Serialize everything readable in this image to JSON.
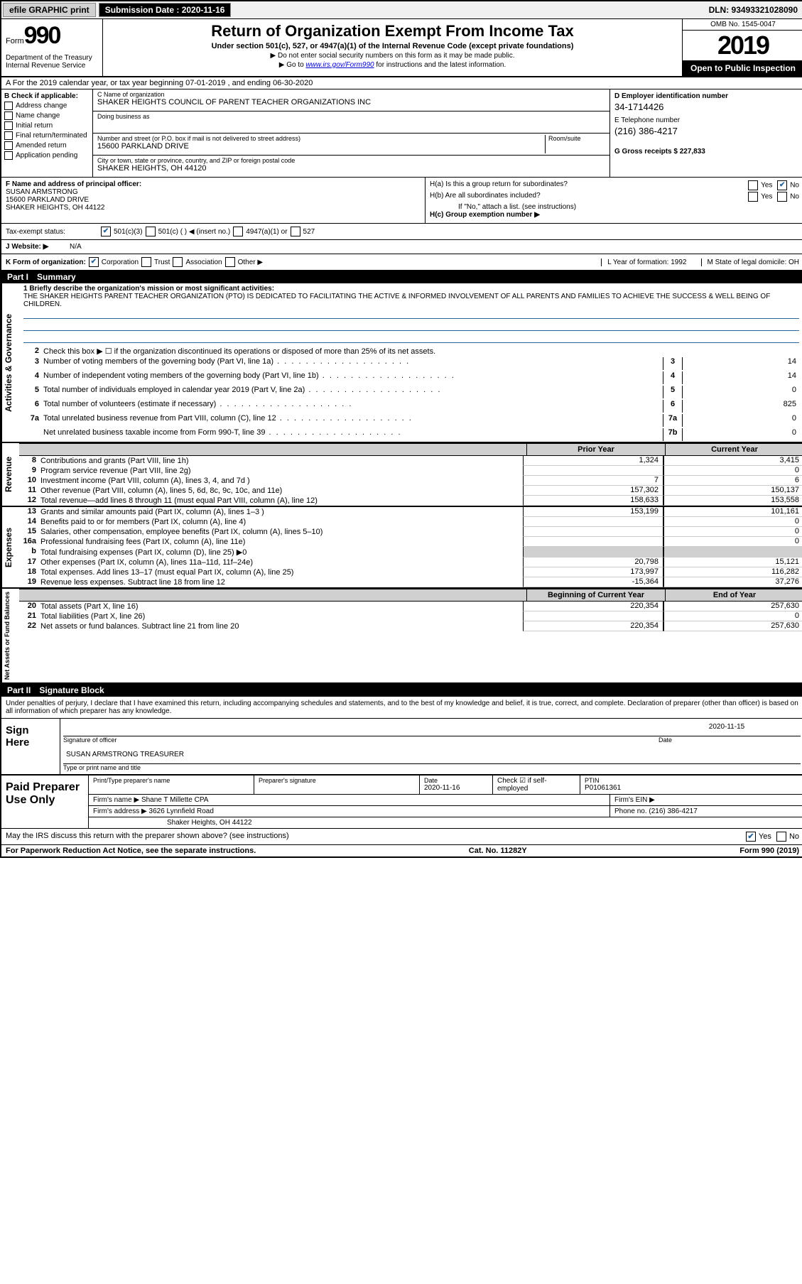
{
  "topbar": {
    "efile": "efile GRAPHIC print",
    "submission_label": "Submission Date : 2020-11-16",
    "dln": "DLN: 93493321028090"
  },
  "header": {
    "form_prefix": "Form",
    "form_number": "990",
    "dept": "Department of the Treasury\nInternal Revenue Service",
    "title": "Return of Organization Exempt From Income Tax",
    "subtitle": "Under section 501(c), 527, or 4947(a)(1) of the Internal Revenue Code (except private foundations)",
    "note1": "▶ Do not enter social security numbers on this form as it may be made public.",
    "note2_pre": "▶ Go to ",
    "note2_link": "www.irs.gov/Form990",
    "note2_post": " for instructions and the latest information.",
    "omb": "OMB No. 1545-0047",
    "year": "2019",
    "open": "Open to Public Inspection"
  },
  "lineA": "A For the 2019 calendar year, or tax year beginning 07-01-2019   , and ending 06-30-2020",
  "checkB": {
    "label": "B Check if applicable:",
    "items": [
      "Address change",
      "Name change",
      "Initial return",
      "Final return/terminated",
      "Amended return",
      "Application pending"
    ]
  },
  "orgC": {
    "name_lbl": "C Name of organization",
    "name": "SHAKER HEIGHTS COUNCIL OF PARENT TEACHER ORGANIZATIONS INC",
    "dba_lbl": "Doing business as",
    "dba": "",
    "addr_lbl": "Number and street (or P.O. box if mail is not delivered to street address)",
    "addr": "15600 PARKLAND DRIVE",
    "room_lbl": "Room/suite",
    "city_lbl": "City or town, state or province, country, and ZIP or foreign postal code",
    "city": "SHAKER HEIGHTS, OH  44120"
  },
  "colD": {
    "ein_lbl": "D Employer identification number",
    "ein": "34-1714426",
    "tel_lbl": "E Telephone number",
    "tel": "(216) 386-4217",
    "gross_lbl": "G Gross receipts $ 227,833"
  },
  "officerF": {
    "label": "F  Name and address of principal officer:",
    "name": "SUSAN ARMSTRONG",
    "addr1": "15600 PARKLAND DRIVE",
    "addr2": "SHAKER HEIGHTS, OH  44122"
  },
  "hbox": {
    "ha": "H(a)  Is this a group return for subordinates?",
    "ha_yes": "Yes",
    "ha_no": "No",
    "hb": "H(b)  Are all subordinates included?",
    "hb_note": "If \"No,\" attach a list. (see instructions)",
    "hc": "H(c)  Group exemption number ▶"
  },
  "status": {
    "label": "Tax-exempt status:",
    "a": "501(c)(3)",
    "b": "501(c) (  ) ◀ (insert no.)",
    "c": "4947(a)(1) or",
    "d": "527"
  },
  "websiteJ": {
    "label": "J  Website: ▶",
    "val": "N/A"
  },
  "korg": {
    "label": "K Form of organization:",
    "a": "Corporation",
    "b": "Trust",
    "c": "Association",
    "d": "Other ▶",
    "yof_lbl": "L Year of formation: 1992",
    "dom_lbl": "M State of legal domicile: OH"
  },
  "part1": {
    "pn": "Part I",
    "title": "Summary"
  },
  "mission": {
    "label": "1  Briefly describe the organization's mission or most significant activities:",
    "text": "THE SHAKER HEIGHTS PARENT TEACHER ORGANIZATION (PTO) IS DEDICATED TO FACILITATING THE ACTIVE & INFORMED INVOLVEMENT OF ALL PARENTS AND FAMILIES TO ACHIEVE THE SUCCESS & WELL BEING OF CHILDREN."
  },
  "gov_lines": [
    {
      "n": "2",
      "t": "Check this box ▶ ☐  if the organization discontinued its operations or disposed of more than 25% of its net assets."
    },
    {
      "n": "3",
      "t": "Number of voting members of the governing body (Part VI, line 1a)",
      "nc": "3",
      "v": "14"
    },
    {
      "n": "4",
      "t": "Number of independent voting members of the governing body (Part VI, line 1b)",
      "nc": "4",
      "v": "14"
    },
    {
      "n": "5",
      "t": "Total number of individuals employed in calendar year 2019 (Part V, line 2a)",
      "nc": "5",
      "v": "0"
    },
    {
      "n": "6",
      "t": "Total number of volunteers (estimate if necessary)",
      "nc": "6",
      "v": "825"
    },
    {
      "n": "7a",
      "t": "Total unrelated business revenue from Part VIII, column (C), line 12",
      "nc": "7a",
      "v": "0"
    },
    {
      "n": "",
      "t": "Net unrelated business taxable income from Form 990-T, line 39",
      "nc": "7b",
      "v": "0"
    }
  ],
  "col_hdr": {
    "prior": "Prior Year",
    "current": "Current Year"
  },
  "revenue": [
    {
      "n": "8",
      "t": "Contributions and grants (Part VIII, line 1h)",
      "p": "1,324",
      "c": "3,415"
    },
    {
      "n": "9",
      "t": "Program service revenue (Part VIII, line 2g)",
      "p": "",
      "c": "0"
    },
    {
      "n": "10",
      "t": "Investment income (Part VIII, column (A), lines 3, 4, and 7d )",
      "p": "7",
      "c": "6"
    },
    {
      "n": "11",
      "t": "Other revenue (Part VIII, column (A), lines 5, 6d, 8c, 9c, 10c, and 11e)",
      "p": "157,302",
      "c": "150,137"
    },
    {
      "n": "12",
      "t": "Total revenue—add lines 8 through 11 (must equal Part VIII, column (A), line 12)",
      "p": "158,633",
      "c": "153,558"
    }
  ],
  "expenses": [
    {
      "n": "13",
      "t": "Grants and similar amounts paid (Part IX, column (A), lines 1–3 )",
      "p": "153,199",
      "c": "101,161"
    },
    {
      "n": "14",
      "t": "Benefits paid to or for members (Part IX, column (A), line 4)",
      "p": "",
      "c": "0"
    },
    {
      "n": "15",
      "t": "Salaries, other compensation, employee benefits (Part IX, column (A), lines 5–10)",
      "p": "",
      "c": "0"
    },
    {
      "n": "16a",
      "t": "Professional fundraising fees (Part IX, column (A), line 11e)",
      "p": "",
      "c": "0"
    },
    {
      "n": "b",
      "t": "Total fundraising expenses (Part IX, column (D), line 25) ▶0",
      "p": "shade",
      "c": "shade"
    },
    {
      "n": "17",
      "t": "Other expenses (Part IX, column (A), lines 11a–11d, 11f–24e)",
      "p": "20,798",
      "c": "15,121"
    },
    {
      "n": "18",
      "t": "Total expenses. Add lines 13–17 (must equal Part IX, column (A), line 25)",
      "p": "173,997",
      "c": "116,282"
    },
    {
      "n": "19",
      "t": "Revenue less expenses. Subtract line 18 from line 12",
      "p": "-15,364",
      "c": "37,276"
    }
  ],
  "na_hdr": {
    "beg": "Beginning of Current Year",
    "end": "End of Year"
  },
  "netassets": [
    {
      "n": "20",
      "t": "Total assets (Part X, line 16)",
      "p": "220,354",
      "c": "257,630"
    },
    {
      "n": "21",
      "t": "Total liabilities (Part X, line 26)",
      "p": "",
      "c": "0"
    },
    {
      "n": "22",
      "t": "Net assets or fund balances. Subtract line 21 from line 20",
      "p": "220,354",
      "c": "257,630"
    }
  ],
  "part2": {
    "pn": "Part II",
    "title": "Signature Block"
  },
  "sig_decl": "Under penalties of perjury, I declare that I have examined this return, including accompanying schedules and statements, and to the best of my knowledge and belief, it is true, correct, and complete. Declaration of preparer (other than officer) is based on all information of which preparer has any knowledge.",
  "sign": {
    "label": "Sign Here",
    "sig_of_officer": "Signature of officer",
    "date_lbl": "Date",
    "date": "2020-11-15",
    "name": "SUSAN ARMSTRONG  TREASURER",
    "type_lbl": "Type or print name and title"
  },
  "prep": {
    "label": "Paid Preparer Use Only",
    "pt_lbl": "Print/Type preparer's name",
    "sig_lbl": "Preparer's signature",
    "date_lbl": "Date",
    "date": "2020-11-16",
    "check_lbl": "Check ☑ if self-employed",
    "ptin_lbl": "PTIN",
    "ptin": "P01061361",
    "firm_lbl": "Firm's name   ▶",
    "firm": "Shane T Millette CPA",
    "ein_lbl": "Firm's EIN ▶",
    "addr_lbl": "Firm's address ▶",
    "addr1": "3626 Lynnfield Road",
    "addr2": "Shaker Heights, OH  44122",
    "phone_lbl": "Phone no. (216) 386-4217"
  },
  "discuss": "May the IRS discuss this return with the preparer shown above? (see instructions)",
  "discuss_yes": "Yes",
  "discuss_no": "No",
  "footer": {
    "left": "For Paperwork Reduction Act Notice, see the separate instructions.",
    "mid": "Cat. No. 11282Y",
    "right": "Form 990 (2019)"
  },
  "side": {
    "gov": "Activities & Governance",
    "rev": "Revenue",
    "exp": "Expenses",
    "na": "Net Assets or Fund Balances"
  }
}
